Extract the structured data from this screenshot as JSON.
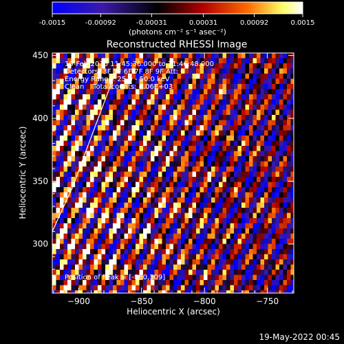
{
  "colorbar": {
    "tick_labels": [
      "-0.0015",
      "-0.00092",
      "-0.00031",
      "0.00031",
      "0.00092",
      "0.0015"
    ],
    "range": [
      -0.0015,
      0.0015
    ],
    "units_label": "(photons cm⁻² s⁻¹ asec⁻²)"
  },
  "title": "Reconstructed RHESSI Image",
  "info_lines": [
    "19-Feb-2015 11:45:36.000 to 11:46:48.000",
    "Detectors: 3F 5F 6F 7F 8F 9F  Att: 0",
    "Energy Range: 25.0 - 50.0 keV",
    "Clean    Total counts: 4.06E+03"
  ],
  "peak_text": "Position of Peak = [-880,309]",
  "axes": {
    "xlabel": "Heliocentric X (arcsec)",
    "ylabel": "Heliocentric Y (arcsec)",
    "xrange": [
      -921,
      -729
    ],
    "yrange": [
      261,
      452
    ],
    "xticks": [
      {
        "value": -900,
        "label": "−900"
      },
      {
        "value": -850,
        "label": "−850"
      },
      {
        "value": -800,
        "label": "−800"
      },
      {
        "value": -750,
        "label": "−750"
      }
    ],
    "yticks": [
      {
        "value": 300,
        "label": "300"
      },
      {
        "value": 350,
        "label": "350"
      },
      {
        "value": 400,
        "label": "400"
      },
      {
        "value": 450,
        "label": "450"
      }
    ]
  },
  "limb_arc": [
    [
      -921,
      310
    ],
    [
      -905,
      345
    ],
    [
      -892,
      380
    ],
    [
      -880,
      412
    ],
    [
      -868,
      444
    ]
  ],
  "timestamp": "19-May-2022 00:45",
  "colors": {
    "background": "#000000",
    "text": "#ffffff",
    "colortable": [
      "#0000ff",
      "#3b1aa8",
      "#000000",
      "#b00000",
      "#ff6a00",
      "#ffff66",
      "#ffffff"
    ]
  }
}
